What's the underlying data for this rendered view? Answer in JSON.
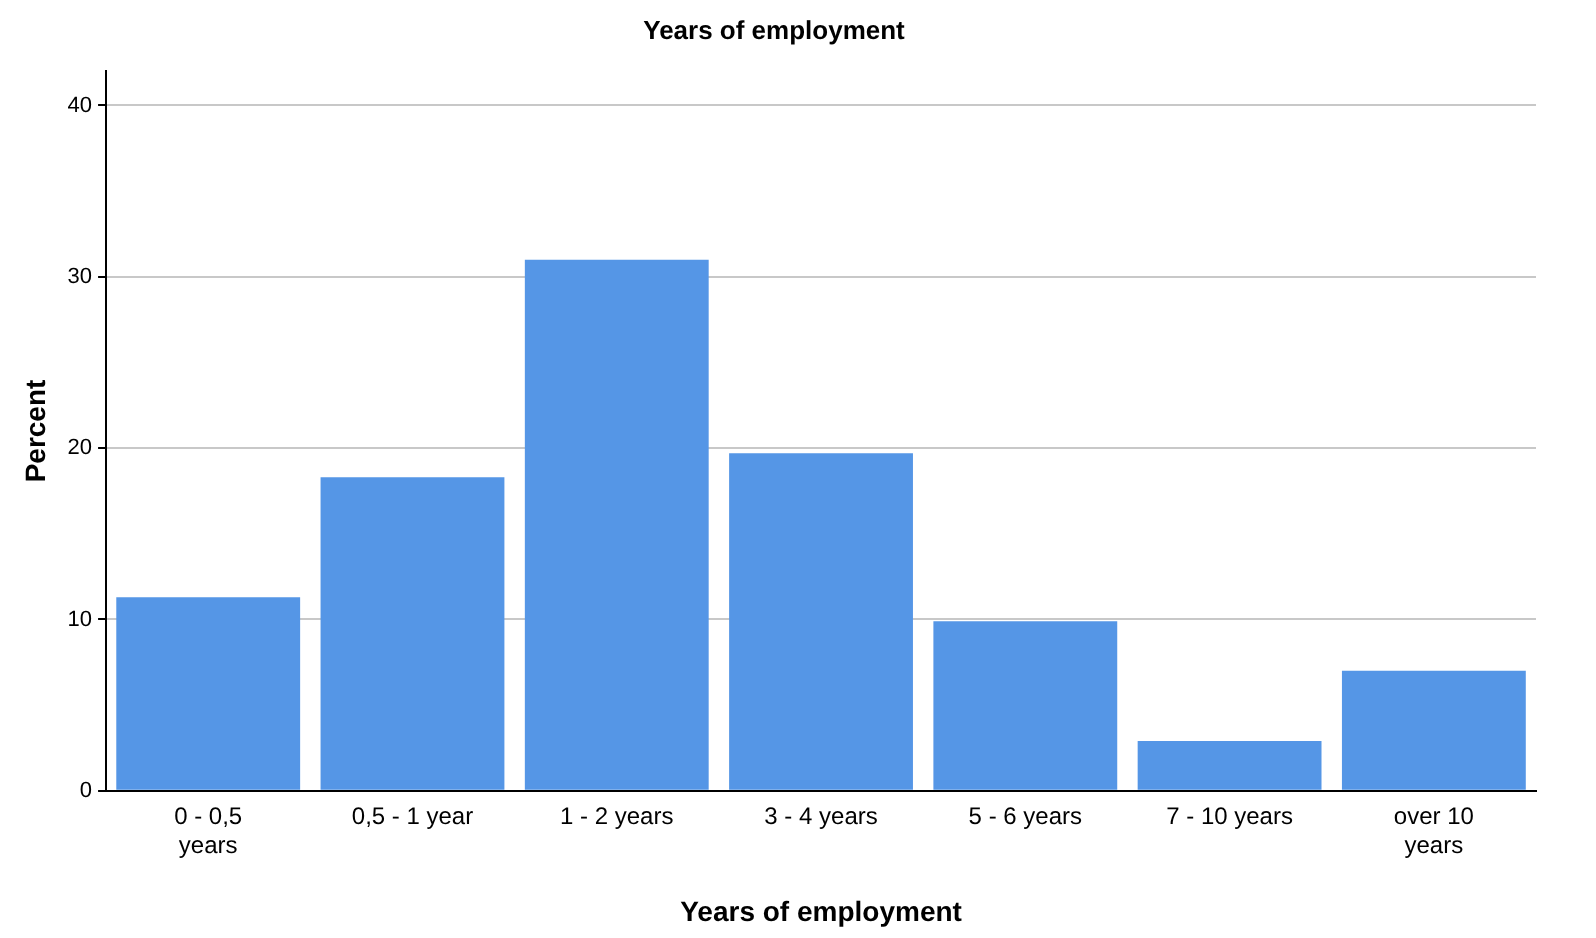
{
  "chart_data": {
    "type": "bar",
    "title": "Years of employment",
    "xlabel": "Years of employment",
    "ylabel": "Percent",
    "categories": [
      "0 - 0,5 years",
      "0,5 - 1 year",
      "1 - 2 years",
      "3 - 4 years",
      "5 - 6 years",
      "7 - 10 years",
      "over 10 years"
    ],
    "values": [
      11.3,
      18.3,
      31.0,
      19.7,
      9.9,
      2.9,
      7.0
    ],
    "color": "#5596e6",
    "ylim": [
      0,
      42
    ],
    "yticks": [
      0,
      10,
      20,
      30,
      40
    ],
    "grid": "y",
    "legend": false
  }
}
